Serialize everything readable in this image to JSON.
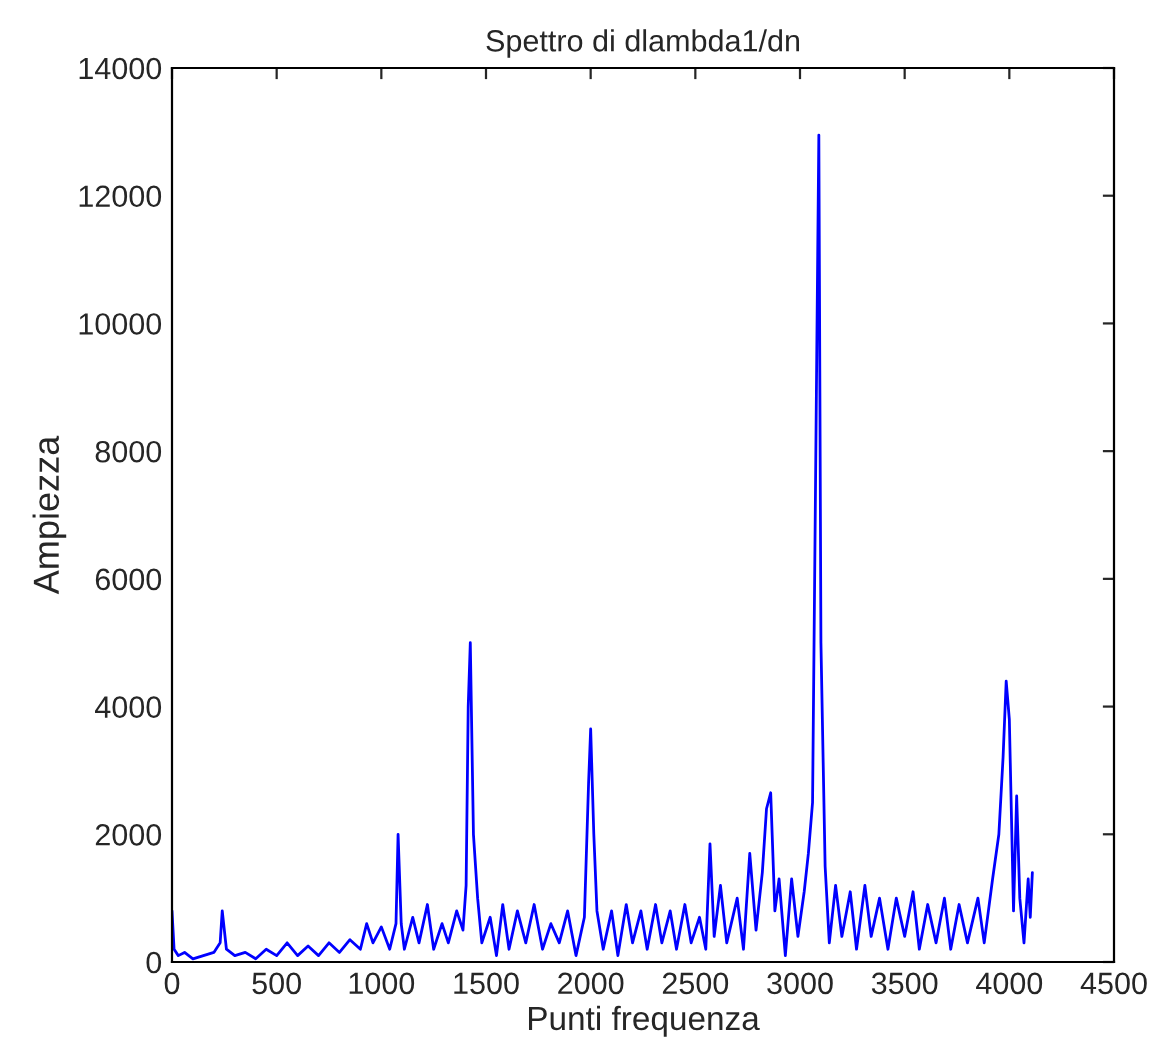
{
  "chart_data": {
    "type": "line",
    "title": "Spettro di dlambda1/dn",
    "xlabel": "Punti frequenza",
    "ylabel": "Ampiezza",
    "xlim": [
      0,
      4500
    ],
    "ylim": [
      0,
      14000
    ],
    "xticks": [
      0,
      500,
      1000,
      1500,
      2000,
      2500,
      3000,
      3500,
      4000,
      4500
    ],
    "yticks": [
      0,
      2000,
      4000,
      6000,
      8000,
      10000,
      12000,
      14000
    ],
    "grid": false,
    "legend": false,
    "series": [
      {
        "color": "#0000ff",
        "x": [
          0,
          10,
          30,
          60,
          100,
          150,
          200,
          230,
          240,
          260,
          300,
          350,
          400,
          450,
          500,
          550,
          600,
          650,
          700,
          750,
          800,
          850,
          900,
          930,
          960,
          1000,
          1040,
          1070,
          1080,
          1095,
          1110,
          1150,
          1180,
          1220,
          1250,
          1290,
          1320,
          1360,
          1390,
          1405,
          1415,
          1425,
          1440,
          1460,
          1480,
          1520,
          1550,
          1580,
          1610,
          1650,
          1690,
          1730,
          1770,
          1810,
          1850,
          1890,
          1930,
          1970,
          1990,
          2000,
          2015,
          2030,
          2060,
          2100,
          2130,
          2170,
          2200,
          2240,
          2270,
          2310,
          2340,
          2380,
          2410,
          2450,
          2480,
          2520,
          2550,
          2570,
          2590,
          2620,
          2650,
          2700,
          2730,
          2760,
          2790,
          2820,
          2840,
          2860,
          2880,
          2900,
          2930,
          2960,
          2990,
          3020,
          3040,
          3060,
          3080,
          3090,
          3100,
          3120,
          3140,
          3170,
          3200,
          3240,
          3270,
          3310,
          3340,
          3380,
          3420,
          3460,
          3500,
          3540,
          3570,
          3610,
          3650,
          3690,
          3720,
          3760,
          3800,
          3850,
          3880,
          3920,
          3950,
          3970,
          3985,
          4000,
          4020,
          4035,
          4050,
          4070,
          4090,
          4100,
          4110
        ],
        "values": [
          800,
          200,
          100,
          150,
          50,
          100,
          150,
          300,
          800,
          200,
          100,
          150,
          50,
          200,
          100,
          300,
          100,
          250,
          100,
          300,
          150,
          350,
          200,
          600,
          300,
          550,
          200,
          600,
          2000,
          600,
          200,
          700,
          300,
          900,
          200,
          600,
          300,
          800,
          500,
          1200,
          4000,
          5000,
          2000,
          1000,
          300,
          700,
          100,
          900,
          200,
          800,
          300,
          900,
          200,
          600,
          300,
          800,
          100,
          700,
          2800,
          3650,
          2000,
          800,
          200,
          800,
          100,
          900,
          300,
          800,
          200,
          900,
          300,
          800,
          200,
          900,
          300,
          700,
          200,
          1850,
          400,
          1200,
          300,
          1000,
          200,
          1700,
          500,
          1400,
          2400,
          2650,
          800,
          1300,
          100,
          1300,
          400,
          1100,
          1700,
          2500,
          9500,
          12950,
          5000,
          1500,
          300,
          1200,
          400,
          1100,
          200,
          1200,
          400,
          1000,
          200,
          1000,
          400,
          1100,
          200,
          900,
          300,
          1000,
          200,
          900,
          300,
          1000,
          300,
          1300,
          2000,
          3200,
          4400,
          3800,
          800,
          2600,
          1000,
          300,
          1300,
          700,
          1400
        ]
      }
    ]
  }
}
